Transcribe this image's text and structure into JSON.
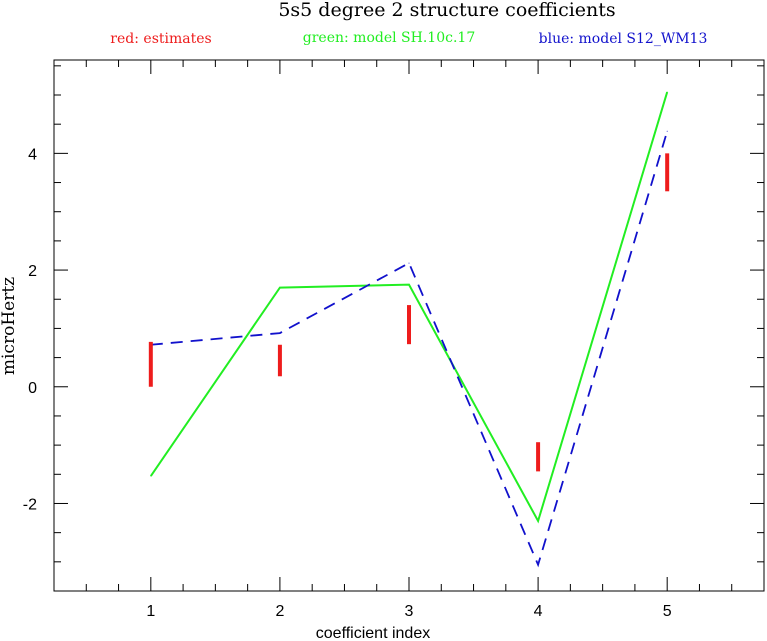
{
  "chart_data": {
    "type": "line",
    "title": "5s5 degree 2 structure coefficients",
    "xlabel": "coefficient index",
    "ylabel": "microHertz",
    "xlim": [
      0.25,
      5.75
    ],
    "ylim": [
      -3.5,
      5.6
    ],
    "x_ticks": [
      1,
      2,
      3,
      4,
      5
    ],
    "y_ticks": [
      -2,
      0,
      2,
      4
    ],
    "legend": {
      "placement": "top",
      "entries": [
        {
          "text": "red: estimates",
          "color": "#ee1c1c"
        },
        {
          "text": "green: model SH.10c.17",
          "color": "#22ee22"
        },
        {
          "text": "blue: model S12_WM13",
          "color": "#1111cc"
        }
      ]
    },
    "x": [
      1,
      2,
      3,
      4,
      5
    ],
    "series": [
      {
        "color": "#22ee22",
        "style": "solid",
        "values": [
          -1.53,
          1.7,
          1.75,
          -2.3,
          5.05
        ]
      },
      {
        "color": "#1111cc",
        "style": "dashed",
        "values": [
          0.72,
          0.92,
          2.12,
          -3.05,
          4.38
        ]
      }
    ],
    "error_bars": {
      "color": "#ee1c1c",
      "ranges": [
        [
          0.0,
          0.77
        ],
        [
          0.18,
          0.72
        ],
        [
          0.73,
          1.4
        ],
        [
          -1.45,
          -0.95
        ],
        [
          3.35,
          4.0
        ]
      ]
    }
  }
}
